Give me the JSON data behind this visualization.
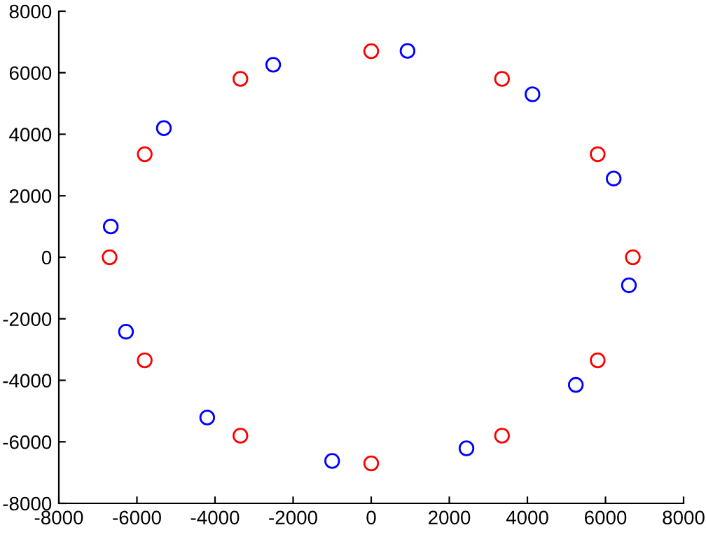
{
  "chart_data": {
    "type": "scatter",
    "series": [
      {
        "color": "#ff0000",
        "x": [
          6700,
          5800,
          3350,
          0,
          -3350,
          -5800,
          -6700,
          -5800,
          -3350,
          0,
          3350,
          5800
        ],
        "values": [
          0,
          3350,
          5800,
          6700,
          5800,
          3350,
          0,
          -3350,
          -5800,
          -6700,
          -5800,
          -3350
        ]
      },
      {
        "color": "#0000ff",
        "x": [
          930,
          4130,
          6210,
          6600,
          5240,
          2440,
          -1000,
          -4200,
          -6280,
          -6670,
          -5310,
          -2510
        ],
        "values": [
          6710,
          5300,
          2560,
          -910,
          -4150,
          -6210,
          -6620,
          -5210,
          -2420,
          1000,
          4200,
          6260
        ]
      }
    ],
    "marker": "circle",
    "grid": false,
    "xlim": [
      -8000,
      8000
    ],
    "xticks": [
      -8000,
      -6000,
      -4000,
      -2000,
      0,
      2000,
      4000,
      6000,
      8000
    ],
    "ylim": [
      -8000,
      8000
    ],
    "yticks": [
      -8000,
      -6000,
      -4000,
      -2000,
      0,
      2000,
      4000,
      6000,
      8000
    ]
  }
}
